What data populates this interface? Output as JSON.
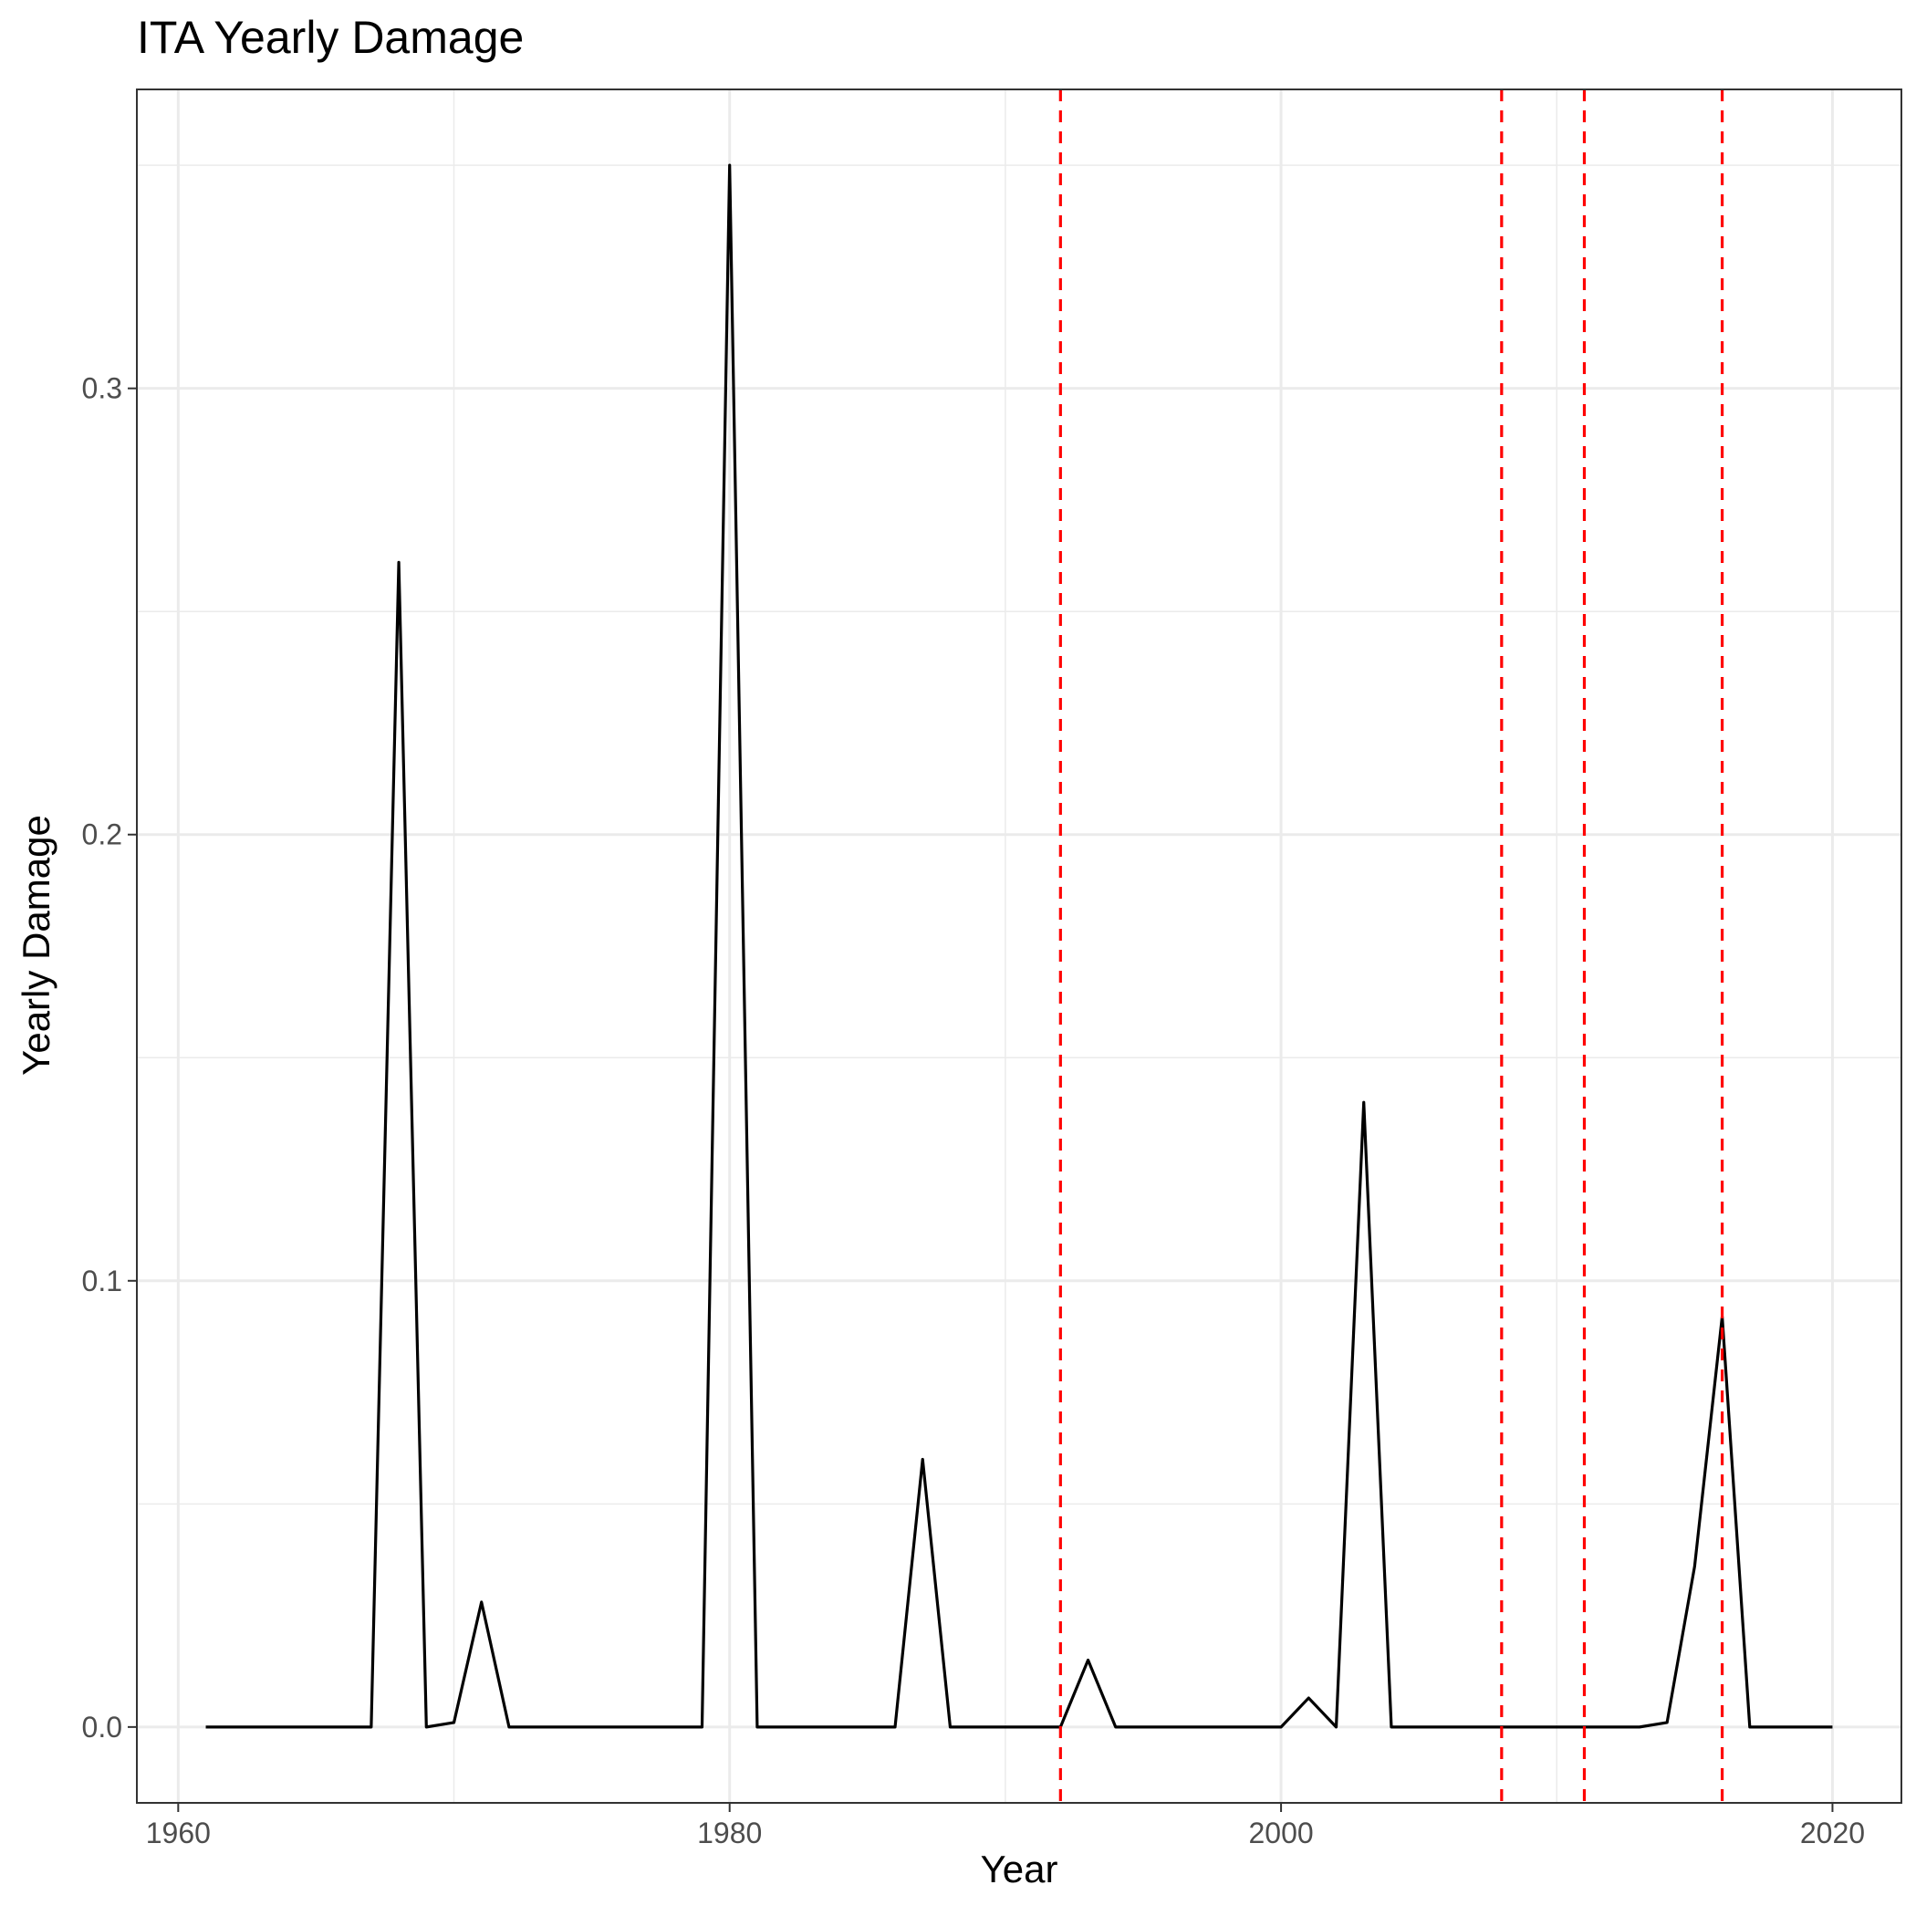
{
  "chart_data": {
    "type": "line",
    "title": "ITA Yearly Damage",
    "xlabel": "Year",
    "ylabel": "Yearly Damage",
    "xlim": [
      1958.5,
      2022.5
    ],
    "ylim": [
      -0.017,
      0.367
    ],
    "x_ticks": [
      1960,
      1980,
      2000,
      2020
    ],
    "x_tick_labels": [
      "1960",
      "1980",
      "2000",
      "2020"
    ],
    "y_ticks": [
      0.0,
      0.1,
      0.2,
      0.3
    ],
    "y_tick_labels": [
      "0.0",
      "0.1",
      "0.2",
      "0.3"
    ],
    "x_minor_grid": [
      1970,
      1990,
      2010
    ],
    "y_minor_grid": [
      0.05,
      0.15,
      0.25,
      0.35
    ],
    "grid": true,
    "theme": "bw",
    "series": [
      {
        "color": "#000000",
        "x": [
          1961,
          1962,
          1963,
          1964,
          1965,
          1966,
          1967,
          1968,
          1969,
          1970,
          1971,
          1972,
          1973,
          1974,
          1975,
          1976,
          1977,
          1978,
          1979,
          1980,
          1981,
          1982,
          1983,
          1984,
          1985,
          1986,
          1987,
          1988,
          1989,
          1990,
          1991,
          1992,
          1993,
          1994,
          1995,
          1996,
          1997,
          1998,
          1999,
          2000,
          2001,
          2002,
          2003,
          2004,
          2005,
          2006,
          2007,
          2008,
          2009,
          2010,
          2011,
          2012,
          2013,
          2014,
          2015,
          2016,
          2017,
          2018,
          2019,
          2020
        ],
        "y": [
          0,
          0,
          0,
          0,
          0,
          0,
          0,
          0.261,
          0,
          0.001,
          0.028,
          0,
          0,
          0,
          0,
          0,
          0,
          0,
          0,
          0.35,
          0,
          0,
          0,
          0,
          0,
          0,
          0.06,
          0,
          0,
          0,
          0,
          0,
          0.015,
          0,
          0,
          0,
          0,
          0,
          0,
          0,
          0.0065,
          0,
          0.14,
          0,
          0,
          0,
          0,
          0,
          0,
          0,
          0,
          0,
          0,
          0.001,
          0.036,
          0.092,
          0,
          0,
          0,
          0
        ]
      }
    ],
    "vlines": {
      "x": [
        1992,
        2008,
        2011,
        2016
      ],
      "color": "#ff0000",
      "style": "dashed"
    }
  }
}
